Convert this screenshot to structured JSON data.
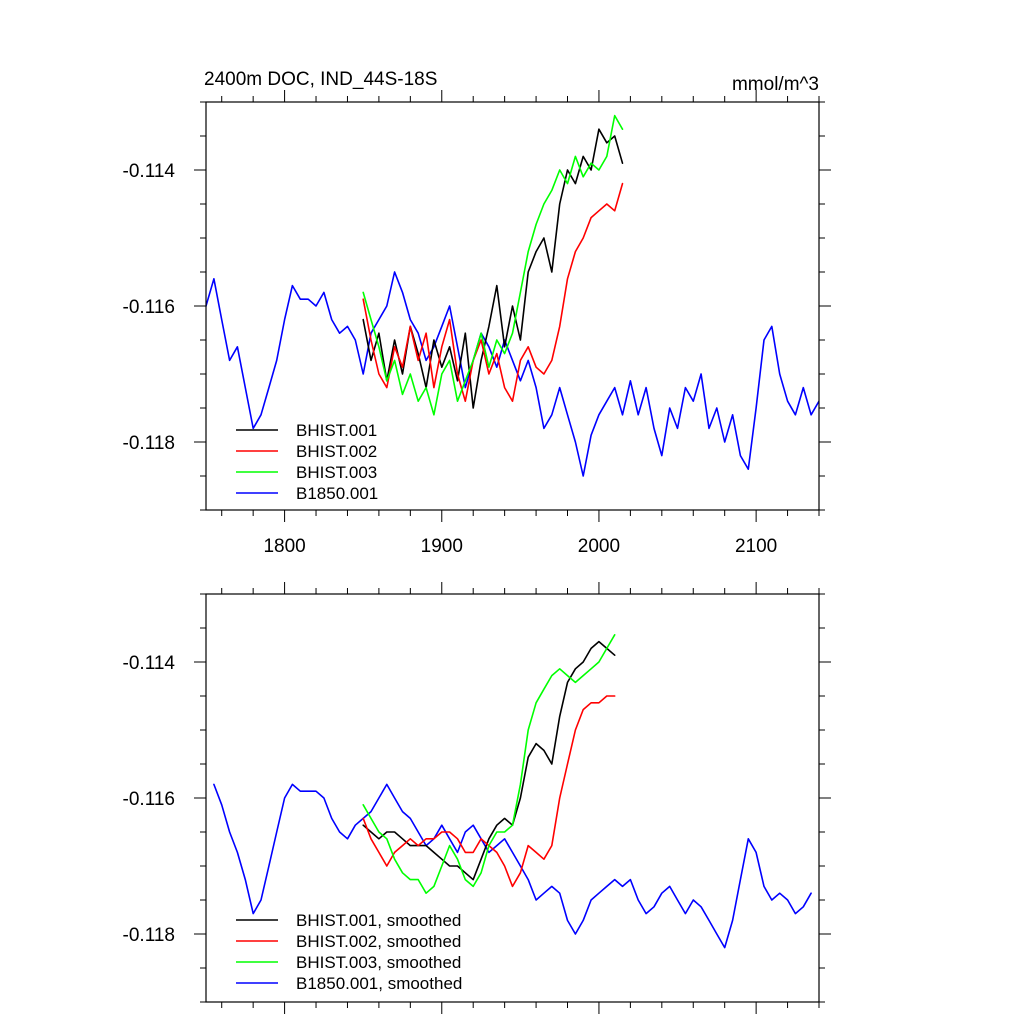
{
  "chart_data": [
    {
      "type": "line",
      "title": "2400m DOC, IND_44S-18S",
      "units": "mmol/m^3",
      "xlabel": "",
      "ylabel": "",
      "xlim": [
        1750,
        2140
      ],
      "ylim": [
        -0.119,
        -0.113
      ],
      "xticks": [
        1800,
        1900,
        2000,
        2100
      ],
      "xtick_labels": [
        "1800",
        "1900",
        "2000",
        "2100"
      ],
      "yticks": [
        -0.118,
        -0.116,
        -0.114
      ],
      "ytick_labels": [
        "-0.118",
        "-0.116",
        "-0.114"
      ],
      "show_xtick_labels": true,
      "grid": false,
      "legend_position": "bottom-left",
      "series": [
        {
          "name": "BHIST.001",
          "color": "#000000",
          "x": [
            1850,
            1855,
            1860,
            1865,
            1870,
            1875,
            1880,
            1885,
            1890,
            1895,
            1900,
            1905,
            1910,
            1915,
            1920,
            1925,
            1930,
            1935,
            1940,
            1945,
            1950,
            1955,
            1960,
            1965,
            1970,
            1975,
            1980,
            1985,
            1990,
            1995,
            2000,
            2005,
            2010,
            2015
          ],
          "y": [
            -0.1162,
            -0.1168,
            -0.1164,
            -0.1171,
            -0.1165,
            -0.117,
            -0.1163,
            -0.1167,
            -0.1172,
            -0.1165,
            -0.1169,
            -0.1166,
            -0.1171,
            -0.1164,
            -0.1175,
            -0.1168,
            -0.1163,
            -0.1157,
            -0.1166,
            -0.116,
            -0.1165,
            -0.1155,
            -0.1152,
            -0.115,
            -0.1155,
            -0.1145,
            -0.114,
            -0.1142,
            -0.1138,
            -0.114,
            -0.1134,
            -0.1136,
            -0.1135,
            -0.1139
          ]
        },
        {
          "name": "BHIST.002",
          "color": "#ff0000",
          "x": [
            1850,
            1855,
            1860,
            1865,
            1870,
            1875,
            1880,
            1885,
            1890,
            1895,
            1900,
            1905,
            1910,
            1915,
            1920,
            1925,
            1930,
            1935,
            1940,
            1945,
            1950,
            1955,
            1960,
            1965,
            1970,
            1975,
            1980,
            1985,
            1990,
            1995,
            2000,
            2005,
            2010,
            2015
          ],
          "y": [
            -0.1159,
            -0.1165,
            -0.117,
            -0.1172,
            -0.1166,
            -0.1169,
            -0.1163,
            -0.1168,
            -0.1164,
            -0.1172,
            -0.1166,
            -0.1162,
            -0.117,
            -0.1174,
            -0.1168,
            -0.1165,
            -0.117,
            -0.1167,
            -0.1172,
            -0.1174,
            -0.1168,
            -0.1166,
            -0.1169,
            -0.117,
            -0.1168,
            -0.1163,
            -0.1156,
            -0.1152,
            -0.115,
            -0.1147,
            -0.1146,
            -0.1145,
            -0.1146,
            -0.1142
          ]
        },
        {
          "name": "BHIST.003",
          "color": "#00ff00",
          "x": [
            1850,
            1855,
            1860,
            1865,
            1870,
            1875,
            1880,
            1885,
            1890,
            1895,
            1900,
            1905,
            1910,
            1915,
            1920,
            1925,
            1930,
            1935,
            1940,
            1945,
            1950,
            1955,
            1960,
            1965,
            1970,
            1975,
            1980,
            1985,
            1990,
            1995,
            2000,
            2005,
            2010,
            2015
          ],
          "y": [
            -0.1158,
            -0.1162,
            -0.1166,
            -0.1171,
            -0.1168,
            -0.1173,
            -0.117,
            -0.1174,
            -0.1172,
            -0.1176,
            -0.117,
            -0.1168,
            -0.1174,
            -0.1171,
            -0.1168,
            -0.1164,
            -0.1169,
            -0.1165,
            -0.1167,
            -0.1164,
            -0.1158,
            -0.1152,
            -0.1148,
            -0.1145,
            -0.1143,
            -0.114,
            -0.1142,
            -0.1138,
            -0.1141,
            -0.1139,
            -0.114,
            -0.1138,
            -0.1132,
            -0.1134
          ]
        },
        {
          "name": "B1850.001",
          "color": "#0000ff",
          "x": [
            1750,
            1755,
            1760,
            1765,
            1770,
            1775,
            1780,
            1785,
            1790,
            1795,
            1800,
            1805,
            1810,
            1815,
            1820,
            1825,
            1830,
            1835,
            1840,
            1845,
            1850,
            1855,
            1860,
            1865,
            1870,
            1875,
            1880,
            1885,
            1890,
            1895,
            1900,
            1905,
            1910,
            1915,
            1920,
            1925,
            1930,
            1935,
            1940,
            1945,
            1950,
            1955,
            1960,
            1965,
            1970,
            1975,
            1980,
            1985,
            1990,
            1995,
            2000,
            2005,
            2010,
            2015,
            2020,
            2025,
            2030,
            2035,
            2040,
            2045,
            2050,
            2055,
            2060,
            2065,
            2070,
            2075,
            2080,
            2085,
            2090,
            2095,
            2100,
            2105,
            2110,
            2115,
            2120,
            2125,
            2130,
            2135,
            2140
          ],
          "y": [
            -0.116,
            -0.1156,
            -0.1162,
            -0.1168,
            -0.1166,
            -0.1172,
            -0.1178,
            -0.1176,
            -0.1172,
            -0.1168,
            -0.1162,
            -0.1157,
            -0.1159,
            -0.1159,
            -0.116,
            -0.1158,
            -0.1162,
            -0.1164,
            -0.1163,
            -0.1165,
            -0.117,
            -0.1164,
            -0.1162,
            -0.116,
            -0.1155,
            -0.1158,
            -0.1162,
            -0.1164,
            -0.1168,
            -0.1166,
            -0.1163,
            -0.116,
            -0.1166,
            -0.1172,
            -0.1168,
            -0.1164,
            -0.1166,
            -0.1169,
            -0.1165,
            -0.1168,
            -0.1171,
            -0.1168,
            -0.1172,
            -0.1178,
            -0.1176,
            -0.1172,
            -0.1176,
            -0.118,
            -0.1185,
            -0.1179,
            -0.1176,
            -0.1174,
            -0.1172,
            -0.1176,
            -0.1171,
            -0.1176,
            -0.1172,
            -0.1178,
            -0.1182,
            -0.1175,
            -0.1178,
            -0.1172,
            -0.1174,
            -0.117,
            -0.1178,
            -0.1175,
            -0.118,
            -0.1176,
            -0.1182,
            -0.1184,
            -0.1175,
            -0.1165,
            -0.1163,
            -0.117,
            -0.1174,
            -0.1176,
            -0.1172,
            -0.1176,
            -0.1174
          ]
        }
      ]
    },
    {
      "type": "line",
      "title": "",
      "units": "",
      "xlabel": "",
      "ylabel": "",
      "xlim": [
        1750,
        2140
      ],
      "ylim": [
        -0.119,
        -0.113
      ],
      "xticks": [
        1800,
        1900,
        2000,
        2100
      ],
      "xtick_labels": [
        "",
        "",
        "",
        ""
      ],
      "yticks": [
        -0.118,
        -0.116,
        -0.114
      ],
      "ytick_labels": [
        "-0.118",
        "-0.116",
        "-0.114"
      ],
      "show_xtick_labels": false,
      "grid": false,
      "legend_position": "bottom-left",
      "series": [
        {
          "name": "BHIST.001, smoothed",
          "color": "#000000",
          "x": [
            1850,
            1855,
            1860,
            1865,
            1870,
            1875,
            1880,
            1885,
            1890,
            1895,
            1900,
            1905,
            1910,
            1915,
            1920,
            1925,
            1930,
            1935,
            1940,
            1945,
            1950,
            1955,
            1960,
            1965,
            1970,
            1975,
            1980,
            1985,
            1990,
            1995,
            2000,
            2005,
            2010
          ],
          "y": [
            -0.1164,
            -0.1165,
            -0.1166,
            -0.1165,
            -0.1165,
            -0.1166,
            -0.1167,
            -0.1167,
            -0.1167,
            -0.1168,
            -0.1169,
            -0.117,
            -0.117,
            -0.1171,
            -0.1172,
            -0.1169,
            -0.1166,
            -0.1164,
            -0.1163,
            -0.1164,
            -0.116,
            -0.1154,
            -0.1152,
            -0.1153,
            -0.1155,
            -0.1148,
            -0.1143,
            -0.1141,
            -0.114,
            -0.1138,
            -0.1137,
            -0.1138,
            -0.1139
          ]
        },
        {
          "name": "BHIST.002, smoothed",
          "color": "#ff0000",
          "x": [
            1850,
            1855,
            1860,
            1865,
            1870,
            1875,
            1880,
            1885,
            1890,
            1895,
            1900,
            1905,
            1910,
            1915,
            1920,
            1925,
            1930,
            1935,
            1940,
            1945,
            1950,
            1955,
            1960,
            1965,
            1970,
            1975,
            1980,
            1985,
            1990,
            1995,
            2000,
            2005,
            2010
          ],
          "y": [
            -0.1163,
            -0.1166,
            -0.1168,
            -0.117,
            -0.1168,
            -0.1167,
            -0.1166,
            -0.1167,
            -0.1166,
            -0.1166,
            -0.1165,
            -0.1165,
            -0.1166,
            -0.1168,
            -0.1168,
            -0.1166,
            -0.1167,
            -0.1168,
            -0.117,
            -0.1173,
            -0.1171,
            -0.1167,
            -0.1168,
            -0.1169,
            -0.1167,
            -0.116,
            -0.1155,
            -0.115,
            -0.1147,
            -0.1146,
            -0.1146,
            -0.1145,
            -0.1145
          ]
        },
        {
          "name": "BHIST.003, smoothed",
          "color": "#00ff00",
          "x": [
            1850,
            1855,
            1860,
            1865,
            1870,
            1875,
            1880,
            1885,
            1890,
            1895,
            1900,
            1905,
            1910,
            1915,
            1920,
            1925,
            1930,
            1935,
            1940,
            1945,
            1950,
            1955,
            1960,
            1965,
            1970,
            1975,
            1980,
            1985,
            1990,
            1995,
            2000,
            2005,
            2010
          ],
          "y": [
            -0.1161,
            -0.1163,
            -0.1165,
            -0.1166,
            -0.1169,
            -0.1171,
            -0.1172,
            -0.1172,
            -0.1174,
            -0.1173,
            -0.117,
            -0.1167,
            -0.1169,
            -0.1172,
            -0.1173,
            -0.1171,
            -0.1167,
            -0.1165,
            -0.1165,
            -0.1164,
            -0.1158,
            -0.115,
            -0.1146,
            -0.1144,
            -0.1142,
            -0.1141,
            -0.1142,
            -0.1143,
            -0.1142,
            -0.1141,
            -0.114,
            -0.1138,
            -0.1136
          ]
        },
        {
          "name": "B1850.001, smoothed",
          "color": "#0000ff",
          "x": [
            1755,
            1760,
            1765,
            1770,
            1775,
            1780,
            1785,
            1790,
            1795,
            1800,
            1805,
            1810,
            1815,
            1820,
            1825,
            1830,
            1835,
            1840,
            1845,
            1850,
            1855,
            1860,
            1865,
            1870,
            1875,
            1880,
            1885,
            1890,
            1895,
            1900,
            1905,
            1910,
            1915,
            1920,
            1925,
            1930,
            1935,
            1940,
            1945,
            1950,
            1955,
            1960,
            1965,
            1970,
            1975,
            1980,
            1985,
            1990,
            1995,
            2000,
            2005,
            2010,
            2015,
            2020,
            2025,
            2030,
            2035,
            2040,
            2045,
            2050,
            2055,
            2060,
            2065,
            2070,
            2075,
            2080,
            2085,
            2090,
            2095,
            2100,
            2105,
            2110,
            2115,
            2120,
            2125,
            2130,
            2135
          ],
          "y": [
            -0.1158,
            -0.1161,
            -0.1165,
            -0.1168,
            -0.1172,
            -0.1177,
            -0.1175,
            -0.117,
            -0.1165,
            -0.116,
            -0.1158,
            -0.1159,
            -0.1159,
            -0.1159,
            -0.116,
            -0.1163,
            -0.1165,
            -0.1166,
            -0.1164,
            -0.1163,
            -0.1162,
            -0.116,
            -0.1158,
            -0.116,
            -0.1162,
            -0.1163,
            -0.1165,
            -0.1167,
            -0.1166,
            -0.1164,
            -0.1166,
            -0.1168,
            -0.1165,
            -0.1164,
            -0.1166,
            -0.1168,
            -0.1167,
            -0.1166,
            -0.1168,
            -0.117,
            -0.1172,
            -0.1175,
            -0.1174,
            -0.1173,
            -0.1174,
            -0.1178,
            -0.118,
            -0.1178,
            -0.1175,
            -0.1174,
            -0.1173,
            -0.1172,
            -0.1173,
            -0.1172,
            -0.1175,
            -0.1177,
            -0.1176,
            -0.1174,
            -0.1173,
            -0.1175,
            -0.1177,
            -0.1175,
            -0.1176,
            -0.1178,
            -0.118,
            -0.1182,
            -0.1178,
            -0.1172,
            -0.1166,
            -0.1168,
            -0.1173,
            -0.1175,
            -0.1174,
            -0.1175,
            -0.1177,
            -0.1176,
            -0.1174
          ]
        }
      ]
    }
  ]
}
